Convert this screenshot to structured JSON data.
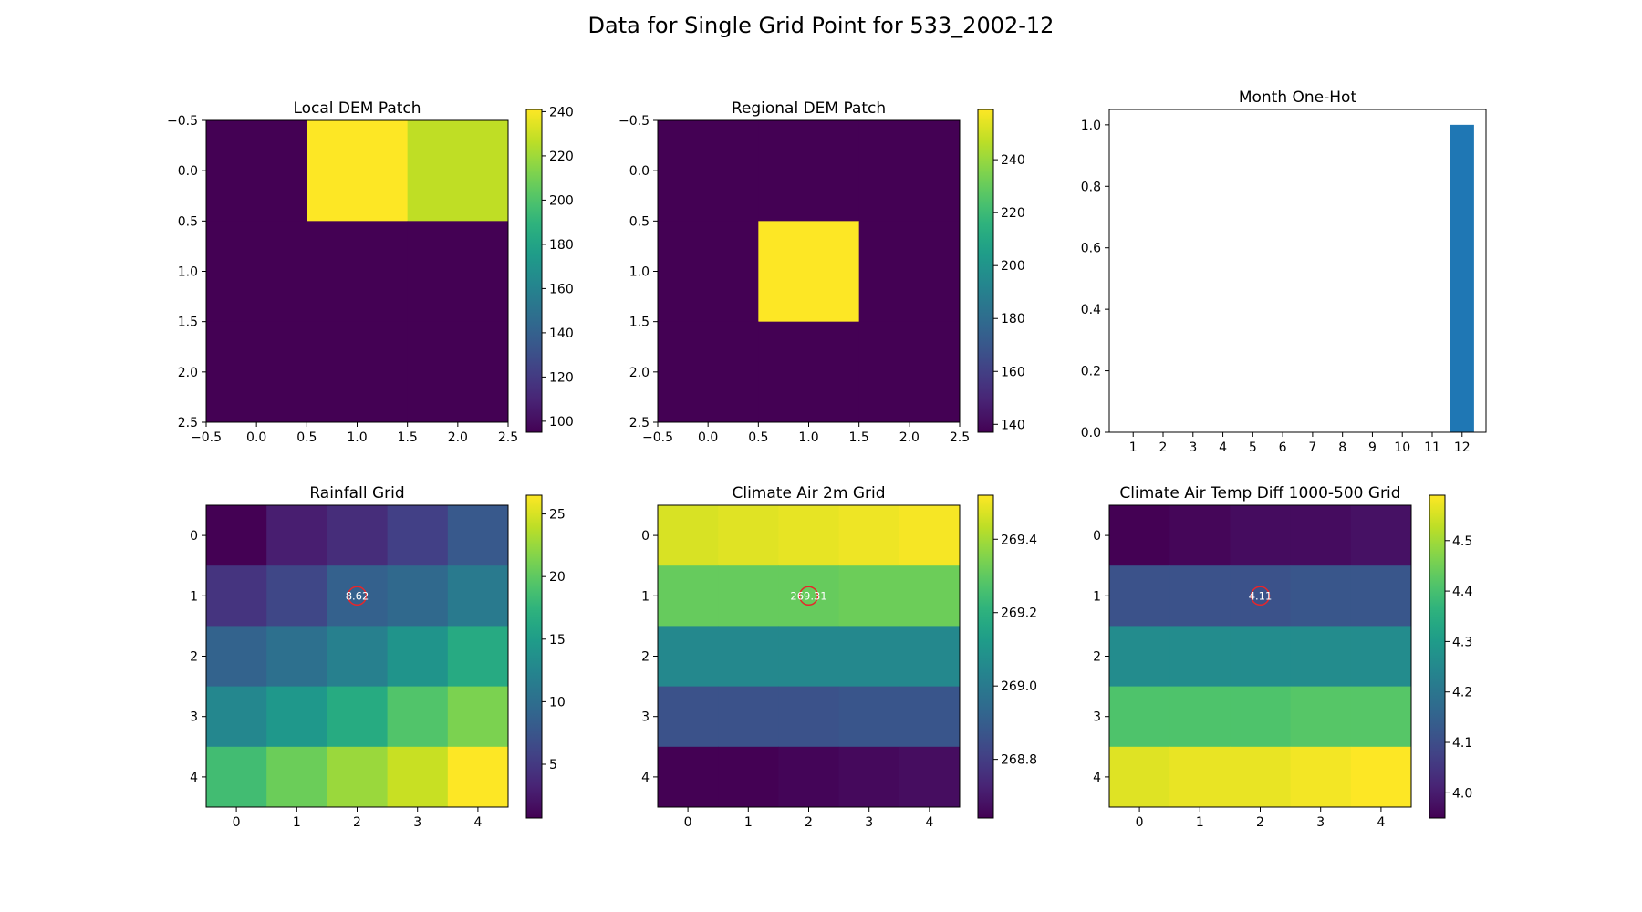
{
  "figure": {
    "title": "Data for Single Grid Point for 533_2002-12"
  },
  "chart_data": [
    {
      "id": "local_dem",
      "type": "heatmap",
      "title": "Local DEM Patch",
      "colormap": "viridis",
      "vmin": 95,
      "vmax": 241,
      "extent": [
        -0.5,
        2.5,
        2.5,
        -0.5
      ],
      "values": [
        [
          95,
          241,
          227
        ],
        [
          95,
          95,
          95
        ],
        [
          95,
          95,
          95
        ]
      ],
      "xticks": [
        -0.5,
        0.0,
        0.5,
        1.0,
        1.5,
        2.0,
        2.5
      ],
      "yticks": [
        -0.5,
        0.0,
        0.5,
        1.0,
        1.5,
        2.0,
        2.5
      ],
      "xtick_labels": [
        "−0.5",
        "0.0",
        "0.5",
        "1.0",
        "1.5",
        "2.0",
        "2.5"
      ],
      "ytick_labels": [
        "−0.5",
        "0.0",
        "0.5",
        "1.0",
        "1.5",
        "2.0",
        "2.5"
      ],
      "colorbar_ticks": [
        100,
        120,
        140,
        160,
        180,
        200,
        220,
        240
      ],
      "colorbar_labels": [
        "100",
        "120",
        "140",
        "160",
        "180",
        "200",
        "220",
        "240"
      ]
    },
    {
      "id": "regional_dem",
      "type": "heatmap",
      "title": "Regional DEM Patch",
      "colormap": "viridis",
      "vmin": 137,
      "vmax": 259,
      "extent": [
        -0.5,
        2.5,
        2.5,
        -0.5
      ],
      "values": [
        [
          137,
          137,
          137
        ],
        [
          137,
          259,
          137
        ],
        [
          137,
          137,
          137
        ]
      ],
      "xticks": [
        -0.5,
        0.0,
        0.5,
        1.0,
        1.5,
        2.0,
        2.5
      ],
      "yticks": [
        -0.5,
        0.0,
        0.5,
        1.0,
        1.5,
        2.0,
        2.5
      ],
      "xtick_labels": [
        "−0.5",
        "0.0",
        "0.5",
        "1.0",
        "1.5",
        "2.0",
        "2.5"
      ],
      "ytick_labels": [
        "−0.5",
        "0.0",
        "0.5",
        "1.0",
        "1.5",
        "2.0",
        "2.5"
      ],
      "colorbar_ticks": [
        140,
        160,
        180,
        200,
        220,
        240
      ],
      "colorbar_labels": [
        "140",
        "160",
        "180",
        "200",
        "220",
        "240"
      ]
    },
    {
      "id": "month_onehot",
      "type": "bar",
      "title": "Month One-Hot",
      "categories": [
        "1",
        "2",
        "3",
        "4",
        "5",
        "6",
        "7",
        "8",
        "9",
        "10",
        "11",
        "12"
      ],
      "values": [
        0,
        0,
        0,
        0,
        0,
        0,
        0,
        0,
        0,
        0,
        0,
        1
      ],
      "bar_color": "#1f77b4",
      "ylim": [
        0,
        1.05
      ],
      "yticks": [
        0.0,
        0.2,
        0.4,
        0.6,
        0.8,
        1.0
      ],
      "ytick_labels": [
        "0.0",
        "0.2",
        "0.4",
        "0.6",
        "0.8",
        "1.0"
      ]
    },
    {
      "id": "rainfall",
      "type": "heatmap",
      "title": "Rainfall Grid",
      "colormap": "viridis",
      "vmin": 0.7,
      "vmax": 26.5,
      "extent": [
        -0.5,
        4.5,
        4.5,
        -0.5
      ],
      "values": [
        [
          0.7,
          2.8,
          4.0,
          5.6,
          7.8
        ],
        [
          4.6,
          6.2,
          8.62,
          9.4,
          11.2
        ],
        [
          8.8,
          10.1,
          11.9,
          14.0,
          16.5
        ],
        [
          12.6,
          14.4,
          16.6,
          19.4,
          21.3
        ],
        [
          18.5,
          20.6,
          22.6,
          24.4,
          26.5
        ]
      ],
      "xticks": [
        0,
        1,
        2,
        3,
        4
      ],
      "yticks": [
        0,
        1,
        2,
        3,
        4
      ],
      "xtick_labels": [
        "0",
        "1",
        "2",
        "3",
        "4"
      ],
      "ytick_labels": [
        "0",
        "1",
        "2",
        "3",
        "4"
      ],
      "colorbar_ticks": [
        5,
        10,
        15,
        20,
        25
      ],
      "colorbar_labels": [
        "5",
        "10",
        "15",
        "20",
        "25"
      ],
      "marker": {
        "row": 1,
        "col": 2,
        "label": "8.62"
      }
    },
    {
      "id": "air2m",
      "type": "heatmap",
      "title": "Climate Air 2m Grid",
      "colormap": "viridis",
      "vmin": 268.64,
      "vmax": 269.52,
      "extent": [
        -0.5,
        4.5,
        4.5,
        -0.5
      ],
      "values": [
        [
          269.47,
          269.48,
          269.49,
          269.5,
          269.51
        ],
        [
          269.31,
          269.31,
          269.31,
          269.32,
          269.32
        ],
        [
          269.05,
          269.05,
          269.05,
          269.05,
          269.05
        ],
        [
          268.86,
          268.86,
          268.86,
          268.87,
          268.87
        ],
        [
          268.64,
          268.64,
          268.65,
          268.66,
          268.67
        ]
      ],
      "xticks": [
        0,
        1,
        2,
        3,
        4
      ],
      "yticks": [
        0,
        1,
        2,
        3,
        4
      ],
      "xtick_labels": [
        "0",
        "1",
        "2",
        "3",
        "4"
      ],
      "ytick_labels": [
        "0",
        "1",
        "2",
        "3",
        "4"
      ],
      "colorbar_ticks": [
        268.8,
        269.0,
        269.2,
        269.4
      ],
      "colorbar_labels": [
        "268.8",
        "269.0",
        "269.2",
        "269.4"
      ],
      "marker": {
        "row": 1,
        "col": 2,
        "label": "269.31"
      }
    },
    {
      "id": "tempdiff",
      "type": "heatmap",
      "title": "Climate Air Temp Diff 1000-500 Grid",
      "colormap": "viridis",
      "vmin": 3.95,
      "vmax": 4.59,
      "extent": [
        -0.5,
        4.5,
        4.5,
        -0.5
      ],
      "values": [
        [
          3.95,
          3.96,
          3.97,
          3.97,
          3.98
        ],
        [
          4.11,
          4.11,
          4.11,
          4.12,
          4.12
        ],
        [
          4.26,
          4.26,
          4.26,
          4.26,
          4.26
        ],
        [
          4.41,
          4.41,
          4.41,
          4.42,
          4.42
        ],
        [
          4.56,
          4.57,
          4.57,
          4.58,
          4.59
        ]
      ],
      "xticks": [
        0,
        1,
        2,
        3,
        4
      ],
      "yticks": [
        0,
        1,
        2,
        3,
        4
      ],
      "xtick_labels": [
        "0",
        "1",
        "2",
        "3",
        "4"
      ],
      "ytick_labels": [
        "0",
        "1",
        "2",
        "3",
        "4"
      ],
      "colorbar_ticks": [
        4.0,
        4.1,
        4.2,
        4.3,
        4.4,
        4.5
      ],
      "colorbar_labels": [
        "4.0",
        "4.1",
        "4.2",
        "4.3",
        "4.4",
        "4.5"
      ],
      "marker": {
        "row": 1,
        "col": 2,
        "label": "4.11"
      }
    }
  ]
}
